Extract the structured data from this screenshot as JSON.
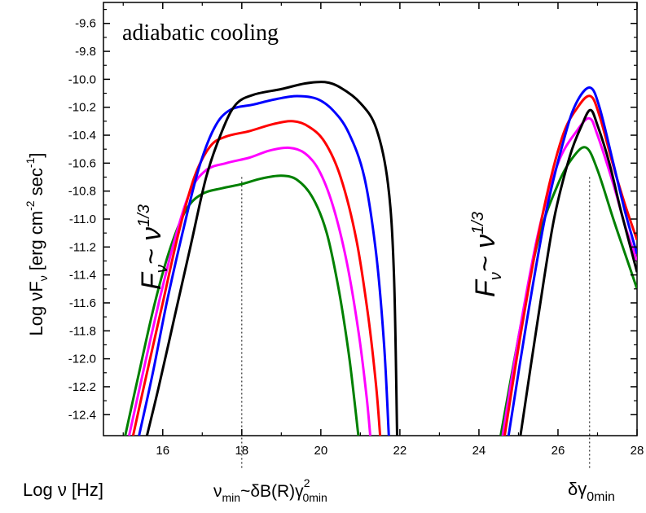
{
  "chart_data": {
    "type": "line",
    "title": "adiabatic cooling",
    "xlabel": "Log ν  [Hz]",
    "ylabel": "Log νF",
    "ylabel_sub": "ν",
    "ylabel_units": "[erg cm",
    "ylabel_exp1": "-2",
    "ylabel_mid": " sec",
    "ylabel_exp2": "-1",
    "ylabel_end": "]",
    "xlim": [
      14.5,
      28
    ],
    "ylim": [
      -12.55,
      -9.45
    ],
    "x_ticks": [
      16,
      18,
      20,
      22,
      24,
      26,
      28
    ],
    "x_tick_labels": [
      "16",
      "18",
      "20",
      "22",
      "24",
      "26",
      "28"
    ],
    "y_ticks": [
      -12.4,
      -12.2,
      -12.0,
      -11.8,
      -11.6,
      -11.4,
      -11.2,
      -11.0,
      -10.8,
      -10.6,
      -10.4,
      -10.2,
      -10.0,
      -9.8,
      -9.6
    ],
    "y_tick_labels": [
      "-12.4",
      "-12.2",
      "-12.0",
      "-11.8",
      "-11.6",
      "-11.4",
      "-11.2",
      "-11.0",
      "-10.8",
      "-10.6",
      "-10.4",
      "-10.2",
      "-10.0",
      "-9.8",
      "-9.6"
    ],
    "grid": false,
    "series": [
      {
        "color": "#000000",
        "low_energy": [
          [
            15.6,
            -12.55
          ],
          [
            15.9,
            -12.2
          ],
          [
            16.3,
            -11.7
          ],
          [
            16.7,
            -11.2
          ],
          [
            17.1,
            -10.7
          ],
          [
            17.5,
            -10.37
          ],
          [
            17.85,
            -10.18
          ],
          [
            18.3,
            -10.11
          ],
          [
            19.0,
            -10.07
          ],
          [
            19.6,
            -10.03
          ],
          [
            20.1,
            -10.02
          ],
          [
            20.5,
            -10.06
          ],
          [
            21.0,
            -10.17
          ],
          [
            21.4,
            -10.35
          ],
          [
            21.7,
            -10.75
          ],
          [
            21.85,
            -11.4
          ],
          [
            21.93,
            -12.55
          ]
        ],
        "high_energy": [
          [
            25.05,
            -12.55
          ],
          [
            25.5,
            -11.7
          ],
          [
            25.9,
            -11.0
          ],
          [
            26.3,
            -10.55
          ],
          [
            26.6,
            -10.33
          ],
          [
            26.82,
            -10.22
          ],
          [
            27.0,
            -10.33
          ],
          [
            27.3,
            -10.6
          ],
          [
            27.6,
            -10.95
          ],
          [
            28.0,
            -11.38
          ]
        ]
      },
      {
        "color": "#0000ff",
        "low_energy": [
          [
            15.4,
            -12.55
          ],
          [
            15.75,
            -12.1
          ],
          [
            16.1,
            -11.6
          ],
          [
            16.5,
            -11.1
          ],
          [
            16.9,
            -10.65
          ],
          [
            17.3,
            -10.35
          ],
          [
            17.7,
            -10.22
          ],
          [
            18.3,
            -10.18
          ],
          [
            18.9,
            -10.14
          ],
          [
            19.4,
            -10.12
          ],
          [
            19.9,
            -10.14
          ],
          [
            20.3,
            -10.22
          ],
          [
            20.7,
            -10.38
          ],
          [
            21.1,
            -10.7
          ],
          [
            21.4,
            -11.25
          ],
          [
            21.6,
            -11.9
          ],
          [
            21.72,
            -12.55
          ]
        ],
        "high_energy": [
          [
            24.75,
            -12.55
          ],
          [
            25.2,
            -11.75
          ],
          [
            25.7,
            -10.95
          ],
          [
            26.2,
            -10.38
          ],
          [
            26.5,
            -10.15
          ],
          [
            26.82,
            -10.06
          ],
          [
            27.05,
            -10.2
          ],
          [
            27.4,
            -10.6
          ],
          [
            27.7,
            -10.95
          ],
          [
            28.0,
            -11.25
          ]
        ]
      },
      {
        "color": "#ff0000",
        "low_energy": [
          [
            15.25,
            -12.55
          ],
          [
            15.6,
            -12.1
          ],
          [
            16.0,
            -11.6
          ],
          [
            16.4,
            -11.1
          ],
          [
            16.8,
            -10.7
          ],
          [
            17.2,
            -10.48
          ],
          [
            17.6,
            -10.41
          ],
          [
            18.2,
            -10.37
          ],
          [
            18.8,
            -10.32
          ],
          [
            19.3,
            -10.3
          ],
          [
            19.7,
            -10.34
          ],
          [
            20.1,
            -10.45
          ],
          [
            20.5,
            -10.7
          ],
          [
            20.9,
            -11.15
          ],
          [
            21.2,
            -11.7
          ],
          [
            21.4,
            -12.2
          ],
          [
            21.5,
            -12.55
          ]
        ],
        "high_energy": [
          [
            24.65,
            -12.55
          ],
          [
            25.1,
            -11.75
          ],
          [
            25.6,
            -10.98
          ],
          [
            26.1,
            -10.42
          ],
          [
            26.5,
            -10.2
          ],
          [
            26.82,
            -10.12
          ],
          [
            27.05,
            -10.26
          ],
          [
            27.4,
            -10.62
          ],
          [
            27.7,
            -10.9
          ],
          [
            28.0,
            -11.15
          ]
        ]
      },
      {
        "color": "#ff00ff",
        "low_energy": [
          [
            15.15,
            -12.55
          ],
          [
            15.5,
            -12.1
          ],
          [
            15.9,
            -11.6
          ],
          [
            16.3,
            -11.15
          ],
          [
            16.7,
            -10.8
          ],
          [
            17.1,
            -10.65
          ],
          [
            17.6,
            -10.6
          ],
          [
            18.2,
            -10.56
          ],
          [
            18.7,
            -10.51
          ],
          [
            19.2,
            -10.49
          ],
          [
            19.6,
            -10.53
          ],
          [
            19.95,
            -10.65
          ],
          [
            20.3,
            -10.9
          ],
          [
            20.65,
            -11.3
          ],
          [
            20.95,
            -11.8
          ],
          [
            21.15,
            -12.25
          ],
          [
            21.25,
            -12.55
          ]
        ],
        "high_energy": [
          [
            24.6,
            -12.55
          ],
          [
            25.0,
            -11.85
          ],
          [
            25.5,
            -11.1
          ],
          [
            26.0,
            -10.6
          ],
          [
            26.5,
            -10.36
          ],
          [
            26.8,
            -10.28
          ],
          [
            27.0,
            -10.4
          ],
          [
            27.4,
            -10.75
          ],
          [
            27.7,
            -11.05
          ],
          [
            28.0,
            -11.3
          ]
        ]
      },
      {
        "color": "#008000",
        "low_energy": [
          [
            15.05,
            -12.55
          ],
          [
            15.4,
            -12.1
          ],
          [
            15.8,
            -11.6
          ],
          [
            16.2,
            -11.2
          ],
          [
            16.6,
            -10.93
          ],
          [
            17.0,
            -10.82
          ],
          [
            17.5,
            -10.78
          ],
          [
            18.0,
            -10.75
          ],
          [
            18.5,
            -10.71
          ],
          [
            19.0,
            -10.69
          ],
          [
            19.4,
            -10.72
          ],
          [
            19.8,
            -10.85
          ],
          [
            20.15,
            -11.1
          ],
          [
            20.45,
            -11.5
          ],
          [
            20.7,
            -11.95
          ],
          [
            20.85,
            -12.3
          ],
          [
            20.95,
            -12.55
          ]
        ],
        "high_energy": [
          [
            24.55,
            -12.55
          ],
          [
            25.0,
            -11.85
          ],
          [
            25.5,
            -11.15
          ],
          [
            26.0,
            -10.75
          ],
          [
            26.4,
            -10.55
          ],
          [
            26.72,
            -10.49
          ],
          [
            27.0,
            -10.65
          ],
          [
            27.4,
            -11.0
          ],
          [
            27.7,
            -11.25
          ],
          [
            28.0,
            -11.5
          ]
        ]
      }
    ],
    "reference_lines": [
      {
        "x": 18,
        "style": "dotted"
      },
      {
        "x": 26.8,
        "style": "dotted"
      }
    ],
    "annotations": {
      "slope1": {
        "F": "F",
        "sub": "ν",
        "rest": "~ ν",
        "sup": "1/3"
      },
      "slope2": {
        "F": "F",
        "sub": "ν",
        "rest": "~ ν",
        "sup": "1/3"
      },
      "numin": {
        "nu": "ν",
        "sub": "min",
        "rest": "~δB(R)γ",
        "sup": "2",
        "sub2": "0min"
      },
      "dgamma": {
        "main": "δγ",
        "sub": "0min"
      }
    }
  }
}
